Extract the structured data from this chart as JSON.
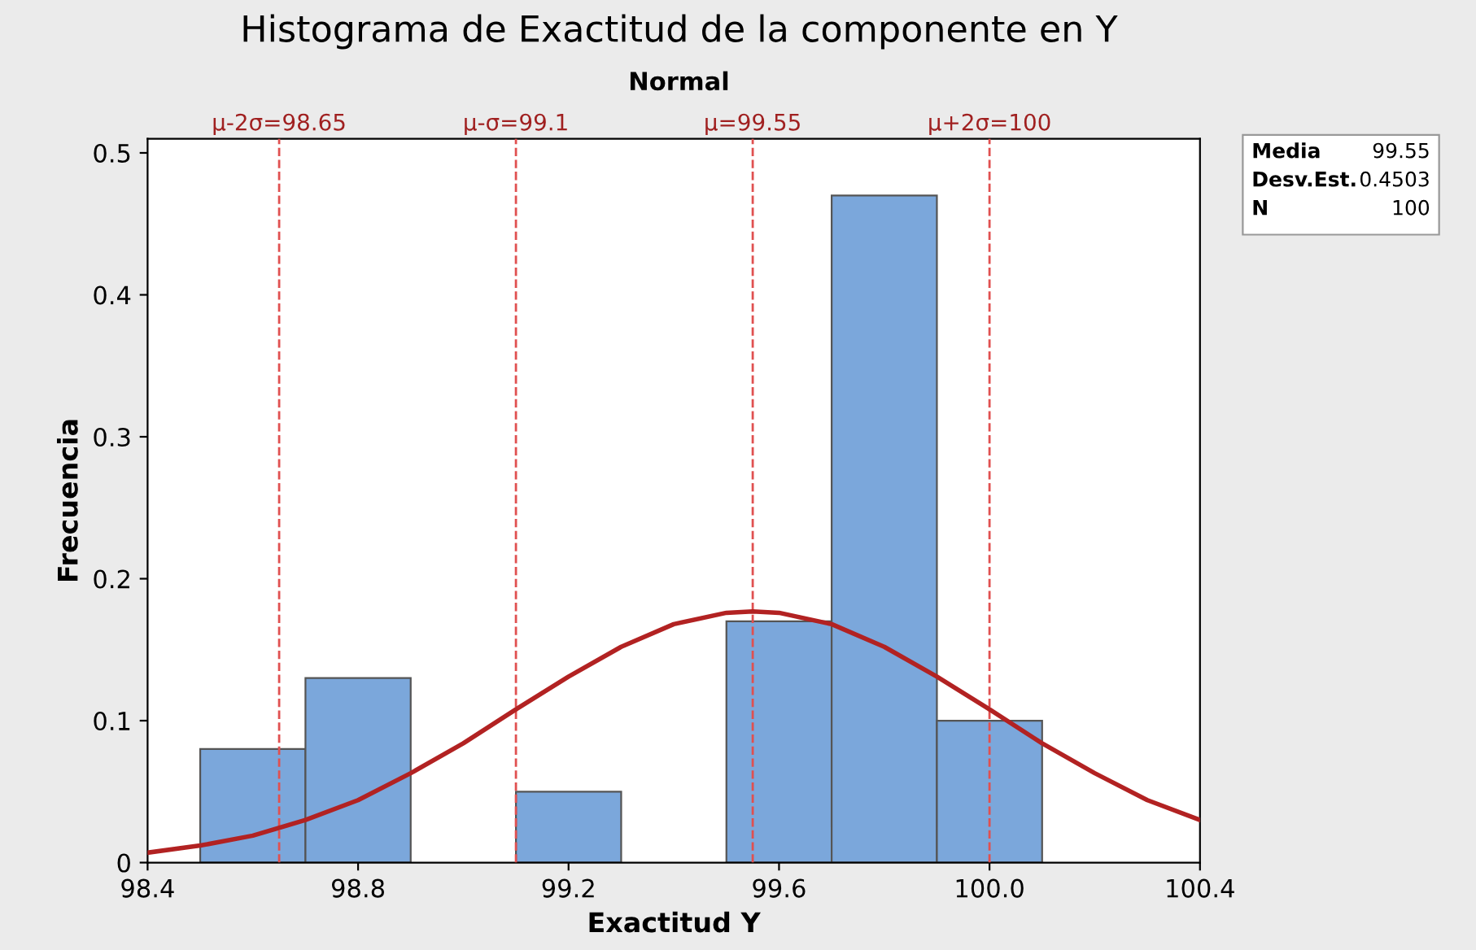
{
  "chart_data": {
    "type": "histogram",
    "title": "Histograma de Exactitud de la componente en Y",
    "subtitle": "Normal",
    "xlabel": "Exactitud Y",
    "ylabel": "Frecuencia",
    "series": [
      {
        "color": "#7ba7db",
        "bins": [
          98.5,
          98.7,
          98.9,
          99.1,
          99.3,
          99.5,
          99.7,
          99.9,
          100.1
        ],
        "values": [
          0.08,
          0.13,
          0,
          0.05,
          0,
          0.17,
          0.47,
          0.1
        ]
      },
      {
        "type": "line",
        "color": "#b22222",
        "x": [
          98.4,
          98.5,
          98.6,
          98.7,
          98.8,
          98.9,
          99.0,
          99.1,
          99.2,
          99.3,
          99.4,
          99.5,
          99.55,
          99.6,
          99.7,
          99.8,
          99.9,
          100.0,
          100.1,
          100.2,
          100.3,
          100.4
        ],
        "values": [
          0.007,
          0.012,
          0.019,
          0.03,
          0.044,
          0.063,
          0.084,
          0.108,
          0.131,
          0.152,
          0.168,
          0.176,
          0.177,
          0.176,
          0.168,
          0.152,
          0.131,
          0.108,
          0.084,
          0.063,
          0.044,
          0.03
        ]
      }
    ],
    "xlim": [
      98.4,
      100.4
    ],
    "xticks": [
      98.4,
      98.8,
      99.2,
      99.6,
      {
        "value": 100,
        "label": "100.0"
      },
      100.4
    ],
    "ylim": [
      0,
      0.51
    ],
    "yticks": [
      0,
      0.1,
      0.2,
      0.3,
      0.4,
      0.5
    ],
    "ref_lines": [
      {
        "axis": "x",
        "value": 98.65,
        "label": "μ-2σ=98.65",
        "color": "#e05050",
        "line_style": "dashed"
      },
      {
        "axis": "x",
        "value": 99.1,
        "label": "μ-σ=99.1",
        "color": "#e05050",
        "line_style": "dashed"
      },
      {
        "axis": "x",
        "value": 99.55,
        "label": "μ=99.55",
        "color": "#e05050",
        "line_style": "dashed"
      },
      {
        "axis": "x",
        "value": 100,
        "label": "μ+2σ=100",
        "color": "#e05050",
        "line_style": "dashed"
      }
    ],
    "annotations": [
      "Media 99.55",
      "Desv.Est. 0.4503",
      "N 100"
    ],
    "grid": false
  }
}
